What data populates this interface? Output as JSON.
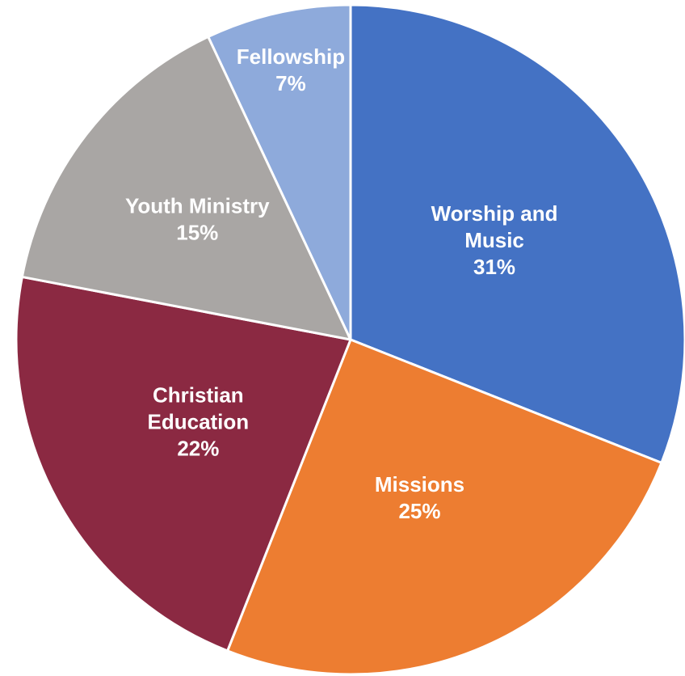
{
  "chart_data": {
    "type": "pie",
    "start_angle_deg": 0,
    "direction": "clockwise",
    "slices": [
      {
        "label_lines": [
          "Worship and",
          "Music"
        ],
        "percent_label": "31%",
        "value": 31,
        "color": "#4472C4"
      },
      {
        "label_lines": [
          "Missions"
        ],
        "percent_label": "25%",
        "value": 25,
        "color": "#ED7D31"
      },
      {
        "label_lines": [
          "Christian",
          "Education"
        ],
        "percent_label": "22%",
        "value": 22,
        "color": "#8B2942"
      },
      {
        "label_lines": [
          "Youth Ministry"
        ],
        "percent_label": "15%",
        "value": 15,
        "color": "#A9A6A4"
      },
      {
        "label_lines": [
          "Fellowship"
        ],
        "percent_label": "7%",
        "value": 7,
        "color": "#8EAADB"
      }
    ]
  }
}
